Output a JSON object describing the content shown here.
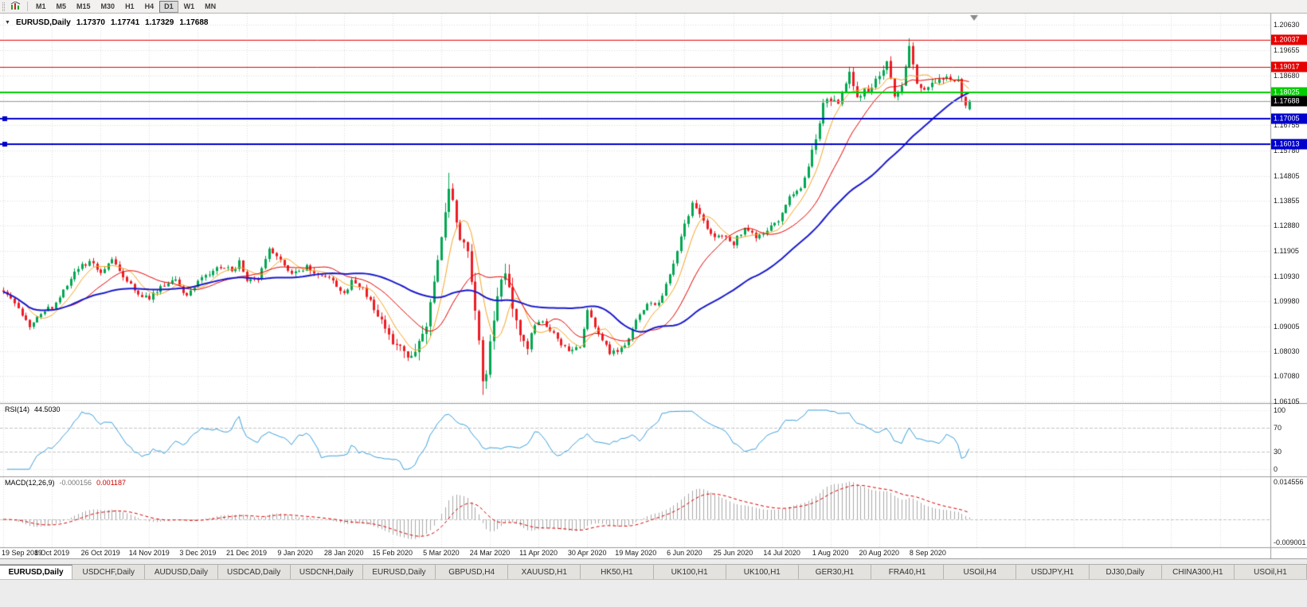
{
  "toolbar": {
    "timeframes": [
      "M1",
      "M5",
      "M15",
      "M30",
      "H1",
      "H4",
      "D1",
      "W1",
      "MN"
    ],
    "active_timeframe": "D1"
  },
  "chart": {
    "title": {
      "symbol": "EURUSD,Daily",
      "open": "1.17370",
      "high": "1.17741",
      "low": "1.17329",
      "close": "1.17688"
    },
    "price_scale": [
      "1.20630",
      "1.19655",
      "1.18680",
      "1.17705",
      "1.16755",
      "1.15780",
      "1.14805",
      "1.13855",
      "1.12880",
      "1.11905",
      "1.10930",
      "1.09980",
      "1.09005",
      "1.08030",
      "1.07080",
      "1.06105"
    ],
    "date_scale": [
      "19 Sep 2019",
      "8 Oct 2019",
      "26 Oct 2019",
      "14 Nov 2019",
      "3 Dec 2019",
      "21 Dec 2019",
      "9 Jan 2020",
      "28 Jan 2020",
      "15 Feb 2020",
      "5 Mar 2020",
      "24 Mar 2020",
      "11 Apr 2020",
      "30 Apr 2020",
      "19 May 2020",
      "6 Jun 2020",
      "25 Jun 2020",
      "14 Jul 2020",
      "1 Aug 2020",
      "20 Aug 2020",
      "8 Sep 2020"
    ],
    "hlines": [
      {
        "price": 1.20037,
        "label": "1.20037",
        "color": "#e60000",
        "width": 1,
        "handles": false
      },
      {
        "price": 1.19017,
        "label": "1.19017",
        "color": "#e60000",
        "width": 1,
        "handles": false
      },
      {
        "price": 1.18025,
        "label": "1.18025",
        "color": "#00cc00",
        "width": 2,
        "handles": false
      },
      {
        "price": 1.17005,
        "label": "1.17005",
        "color": "#0000cc",
        "width": 2,
        "handles": true
      },
      {
        "price": 1.16013,
        "label": "1.16013",
        "color": "#0000cc",
        "width": 2,
        "handles": true
      }
    ],
    "current_price": {
      "price": 1.17688,
      "label": "1.17688",
      "tag_color": "#000000",
      "line_color": "#a0a0a0"
    }
  },
  "rsi_pane": {
    "title": "RSI(14)",
    "value": "44.5030",
    "scale": [
      "100",
      "70",
      "30",
      "0"
    ],
    "levels": [
      70,
      30
    ],
    "bounds": [
      100,
      0
    ],
    "line_color": "#3aa0dc"
  },
  "macd_pane": {
    "title": "MACD(12,26,9)",
    "main_value": "-0.000156",
    "signal_value": "0.001187",
    "scale_max": "0.014556",
    "scale_min": "-0.009001",
    "histogram_color": "#a9a9a9",
    "signal_color": "#dd0000"
  },
  "tabs": [
    "EURUSD,Daily",
    "USDCHF,Daily",
    "AUDUSD,Daily",
    "USDCAD,Daily",
    "USDCNH,Daily",
    "EURUSD,Daily",
    "GBPUSD,H4",
    "XAUUSD,H1",
    "HK50,H1",
    "UK100,H1",
    "UK100,H1",
    "GER30,H1",
    "FRA40,H1",
    "USOil,H4",
    "USDJPY,H1",
    "DJ30,Daily",
    "CHINA300,H1",
    "USOil,H1"
  ],
  "active_tab_index": 0,
  "chart_data": {
    "type": "candlestick",
    "symbol": "EURUSD",
    "timeframe": "Daily",
    "visible_range": {
      "start": "19 Sep 2019",
      "end": "23 Sep 2020"
    },
    "price_axis": {
      "min": 1.06045,
      "max": 1.2106
    },
    "y_tick_labels": [
      "1.20630",
      "1.19655",
      "1.18680",
      "1.17705",
      "1.16755",
      "1.15780",
      "1.14805",
      "1.13855",
      "1.12880",
      "1.11905",
      "1.10930",
      "1.09980",
      "1.09005",
      "1.08030",
      "1.07080",
      "1.06105"
    ],
    "x_tick_labels": [
      "19 Sep 2019",
      "8 Oct 2019",
      "26 Oct 2019",
      "14 Nov 2019",
      "3 Dec 2019",
      "21 Dec 2019",
      "9 Jan 2020",
      "28 Jan 2020",
      "15 Feb 2020",
      "5 Mar 2020",
      "24 Mar 2020",
      "11 Apr 2020",
      "30 Apr 2020",
      "19 May 2020",
      "6 Jun 2020",
      "25 Jun 2020",
      "14 Jul 2020",
      "1 Aug 2020",
      "20 Aug 2020",
      "8 Sep 2020"
    ],
    "num_candles": 259,
    "tick_step_candles": 13,
    "up_color": "#00A651",
    "down_color": "#ED1C24",
    "price_path_anchors": [
      [
        0,
        1.104
      ],
      [
        3,
        1.099
      ],
      [
        7,
        1.0905
      ],
      [
        10,
        1.0955
      ],
      [
        13,
        1.0975
      ],
      [
        16,
        1.104
      ],
      [
        20,
        1.1125
      ],
      [
        24,
        1.115
      ],
      [
        26,
        1.1105
      ],
      [
        29,
        1.1155
      ],
      [
        33,
        1.1075
      ],
      [
        36,
        1.102
      ],
      [
        39,
        1.101
      ],
      [
        43,
        1.1065
      ],
      [
        46,
        1.108
      ],
      [
        49,
        1.101
      ],
      [
        52,
        1.1075
      ],
      [
        55,
        1.11
      ],
      [
        58,
        1.113
      ],
      [
        61,
        1.1115
      ],
      [
        63,
        1.1145
      ],
      [
        65,
        1.1085
      ],
      [
        68,
        1.109
      ],
      [
        71,
        1.1205
      ],
      [
        73,
        1.117
      ],
      [
        76,
        1.112
      ],
      [
        78,
        1.1105
      ],
      [
        81,
        1.113
      ],
      [
        84,
        1.1095
      ],
      [
        88,
        1.108
      ],
      [
        91,
        1.102
      ],
      [
        93,
        1.1075
      ],
      [
        96,
        1.104
      ],
      [
        100,
        1.095
      ],
      [
        104,
        1.0845
      ],
      [
        107,
        1.08
      ],
      [
        109,
        1.079
      ],
      [
        113,
        1.089
      ],
      [
        116,
        1.113
      ],
      [
        119,
        1.144
      ],
      [
        121,
        1.128
      ],
      [
        124,
        1.118
      ],
      [
        126,
        1.098
      ],
      [
        128,
        1.069
      ],
      [
        129,
        1.072
      ],
      [
        132,
        1.102
      ],
      [
        134,
        1.11
      ],
      [
        137,
        1.09
      ],
      [
        140,
        1.082
      ],
      [
        143,
        1.0935
      ],
      [
        147,
        1.087
      ],
      [
        151,
        1.08
      ],
      [
        154,
        1.0825
      ],
      [
        156,
        1.096
      ],
      [
        158,
        1.0905
      ],
      [
        162,
        1.0795
      ],
      [
        166,
        1.082
      ],
      [
        169,
        1.092
      ],
      [
        172,
        1.0985
      ],
      [
        175,
        1.099
      ],
      [
        178,
        1.11
      ],
      [
        182,
        1.129
      ],
      [
        184,
        1.137
      ],
      [
        187,
        1.13
      ],
      [
        190,
        1.124
      ],
      [
        193,
        1.1255
      ],
      [
        195,
        1.122
      ],
      [
        198,
        1.128
      ],
      [
        201,
        1.124
      ],
      [
        204,
        1.127
      ],
      [
        207,
        1.13
      ],
      [
        210,
        1.14
      ],
      [
        213,
        1.143
      ],
      [
        216,
        1.157
      ],
      [
        219,
        1.175
      ],
      [
        221,
        1.178
      ],
      [
        223,
        1.176
      ],
      [
        226,
        1.187
      ],
      [
        228,
        1.179
      ],
      [
        231,
        1.181
      ],
      [
        234,
        1.186
      ],
      [
        236,
        1.193
      ],
      [
        238,
        1.179
      ],
      [
        240,
        1.184
      ],
      [
        242,
        1.199
      ],
      [
        244,
        1.185
      ],
      [
        246,
        1.1815
      ],
      [
        249,
        1.185
      ],
      [
        252,
        1.1865
      ],
      [
        255,
        1.184
      ],
      [
        257,
        1.174
      ],
      [
        258,
        1.17688
      ]
    ],
    "key_extremes": {
      "feb_low": [
        107,
        1.0778
      ],
      "mar_spike_high": [
        119,
        1.1492
      ],
      "mar_crash_low": [
        128,
        1.0636
      ],
      "sep_high": [
        242,
        1.2011
      ]
    },
    "last_candle": {
      "open": 1.1737,
      "high": 1.17741,
      "low": 1.17329,
      "close": 1.17688
    },
    "moving_averages": [
      {
        "type": "sma",
        "period": 7,
        "color": "#f5a623",
        "width": 1
      },
      {
        "type": "sma",
        "period": 18,
        "color": "#e60000",
        "width": 1
      },
      {
        "type": "sma",
        "period": 45,
        "color": "#1a1acc",
        "width": 2
      }
    ],
    "support_resistance": [
      1.20037,
      1.19017,
      1.18025,
      1.17005,
      1.16013
    ],
    "rsi": {
      "period": 14,
      "current": 44.503
    },
    "macd": {
      "fast": 12,
      "slow": 26,
      "signal": 9,
      "current_main": -0.000156,
      "current_signal": 0.001187,
      "scale_max": 0.014556,
      "scale_min": -0.009001
    },
    "base_volatility": 0.0017,
    "volatility_zones": [
      {
        "from": 100,
        "to": 109,
        "vol": 0.0026
      },
      {
        "from": 110,
        "to": 137,
        "vol": 0.0046
      },
      {
        "from": 138,
        "to": 143,
        "vol": 0.003
      },
      {
        "from": 144,
        "to": 176,
        "vol": 0.0014
      },
      {
        "from": 216,
        "to": 258,
        "vol": 0.0024
      }
    ],
    "seed": 1337
  }
}
